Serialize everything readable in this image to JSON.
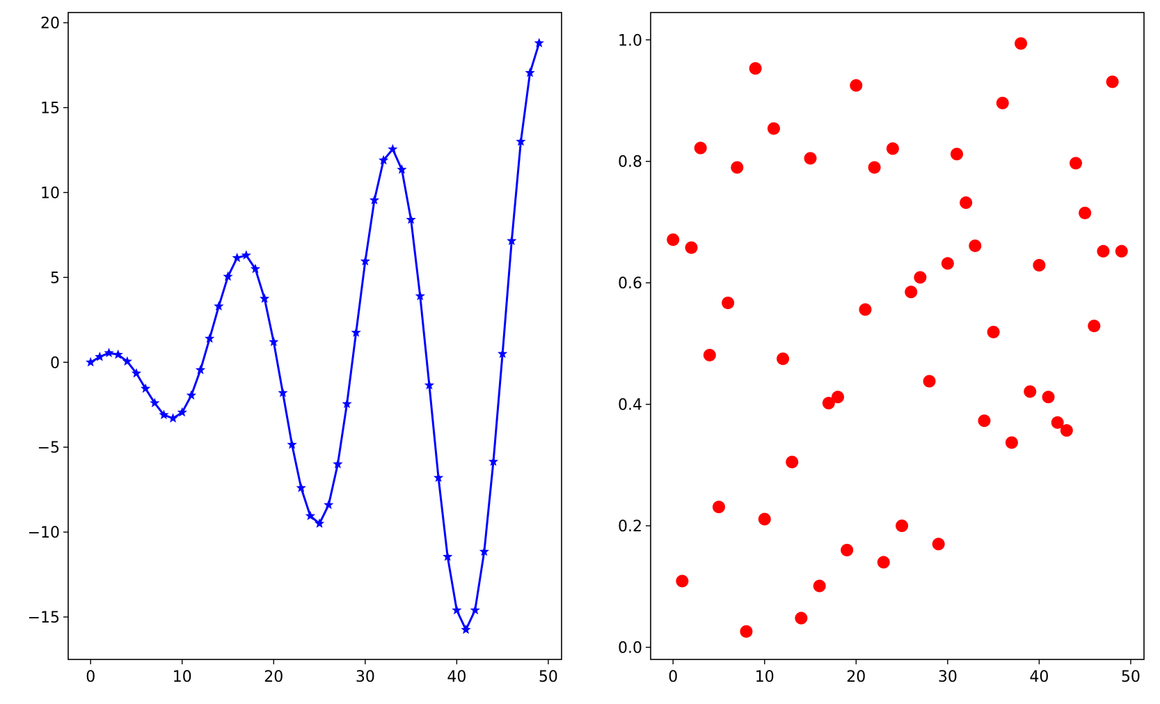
{
  "chart_data": [
    {
      "type": "line",
      "marker": "star",
      "color": "#0000ff",
      "title": "",
      "xlabel": "",
      "ylabel": "",
      "xlim": [
        -2.45,
        51.45
      ],
      "ylim": [
        -17.5,
        20.6
      ],
      "xticks": [
        0,
        10,
        20,
        30,
        40,
        50
      ],
      "yticks": [
        -15,
        -10,
        -5,
        0,
        5,
        10,
        15,
        20
      ],
      "xtick_labels": [
        "0",
        "10",
        "20",
        "30",
        "40",
        "50"
      ],
      "ytick_labels": [
        "−15",
        "−10",
        "−5",
        "0",
        "5",
        "10",
        "15",
        "20"
      ],
      "grid": false,
      "series": [
        {
          "x": [
            0,
            1,
            2,
            3,
            4,
            5,
            6,
            7,
            8,
            9,
            10,
            11,
            12,
            13,
            14,
            15,
            16,
            17,
            18,
            19,
            20,
            21,
            22,
            23,
            24,
            25,
            26,
            27,
            28,
            29,
            30,
            31,
            32,
            33,
            34,
            35,
            36,
            37,
            38,
            39,
            40,
            41,
            42,
            43,
            44,
            45,
            46,
            47,
            48,
            49
          ],
          "values": [
            0.0,
            0.32,
            0.55,
            0.45,
            0.05,
            -0.65,
            -1.55,
            -2.4,
            -3.1,
            -3.3,
            -2.95,
            -1.95,
            -0.45,
            1.4,
            3.3,
            5.05,
            6.15,
            6.3,
            5.5,
            3.75,
            1.2,
            -1.8,
            -4.85,
            -7.4,
            -9.05,
            -9.5,
            -8.4,
            -6.0,
            -2.45,
            1.75,
            5.95,
            9.55,
            11.9,
            12.55,
            11.35,
            8.4,
            3.9,
            -1.35,
            -6.8,
            -11.45,
            -14.6,
            -15.75,
            -14.6,
            -11.15,
            -5.85,
            0.5,
            7.15,
            13.0,
            17.05,
            18.8
          ]
        }
      ]
    },
    {
      "type": "scatter",
      "marker": "circle",
      "color": "#ff0000",
      "title": "",
      "xlabel": "",
      "ylabel": "",
      "xlim": [
        -2.45,
        51.45
      ],
      "ylim": [
        -0.02,
        1.045
      ],
      "xticks": [
        0,
        10,
        20,
        30,
        40,
        50
      ],
      "yticks": [
        0.0,
        0.2,
        0.4,
        0.6,
        0.8,
        1.0
      ],
      "xtick_labels": [
        "0",
        "10",
        "20",
        "30",
        "40",
        "50"
      ],
      "ytick_labels": [
        "0.0",
        "0.2",
        "0.4",
        "0.6",
        "0.8",
        "1.0"
      ],
      "grid": false,
      "series": [
        {
          "x": [
            0,
            1,
            2,
            3,
            4,
            5,
            6,
            7,
            8,
            9,
            10,
            11,
            12,
            13,
            14,
            15,
            16,
            17,
            18,
            19,
            20,
            21,
            22,
            23,
            24,
            25,
            26,
            27,
            28,
            29,
            30,
            31,
            32,
            33,
            34,
            35,
            36,
            37,
            38,
            39,
            40,
            41,
            42,
            43,
            44,
            45,
            46,
            47,
            48,
            49
          ],
          "values": [
            0.671,
            0.109,
            0.658,
            0.822,
            0.481,
            0.231,
            0.567,
            0.79,
            0.026,
            0.953,
            0.211,
            0.854,
            0.475,
            0.305,
            0.048,
            0.805,
            0.101,
            0.402,
            0.412,
            0.16,
            0.925,
            0.556,
            0.79,
            0.14,
            0.821,
            0.2,
            0.585,
            0.609,
            0.438,
            0.17,
            0.632,
            0.812,
            0.732,
            0.661,
            0.373,
            0.519,
            0.896,
            0.337,
            0.994,
            0.421,
            0.629,
            0.412,
            0.37,
            0.357,
            0.797,
            0.715,
            0.529,
            0.652,
            0.931,
            0.652
          ]
        }
      ]
    }
  ]
}
